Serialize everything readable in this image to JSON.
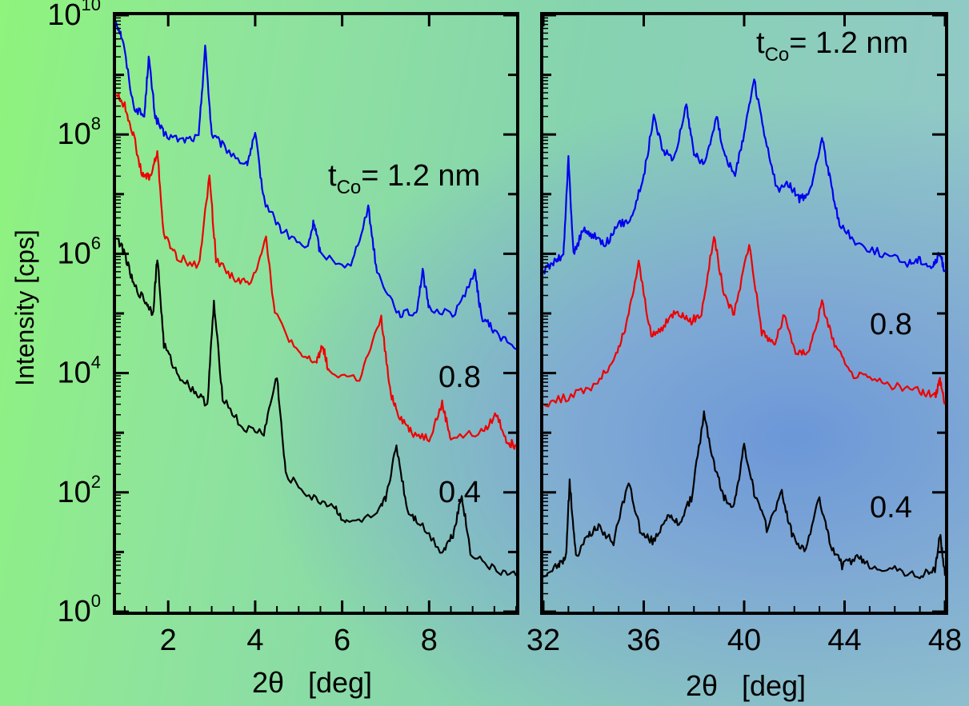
{
  "chart_data": [
    {
      "type": "line",
      "ylabel": "Intensity  [cps]",
      "xlabel": "2θ   [deg]",
      "xlim": [
        0.8,
        10.0
      ],
      "ylim": [
        1,
        10000000000
      ],
      "y_scale": "log",
      "x_ticks": [
        "2",
        "4",
        "6",
        "8"
      ],
      "y_ticks": [
        {
          "base": "10",
          "exp": "0"
        },
        {
          "base": "10",
          "exp": "2"
        },
        {
          "base": "10",
          "exp": "4"
        },
        {
          "base": "10",
          "exp": "6"
        },
        {
          "base": "10",
          "exp": "8"
        },
        {
          "base": "10",
          "exp": "10"
        }
      ],
      "annotations": {
        "thickness_prefix": "t",
        "thickness_sub": "Co",
        "thickness_value": "= 1.2 nm",
        "label_08": "0.8",
        "label_04": "0.4"
      },
      "series": [
        {
          "color": "#0000ee",
          "x": [
            0.8,
            0.95,
            1.2,
            1.45,
            1.55,
            1.7,
            1.9,
            2.3,
            2.7,
            2.85,
            3.0,
            3.3,
            3.8,
            4.0,
            4.2,
            4.6,
            5.2,
            5.35,
            5.5,
            6.2,
            6.6,
            6.8,
            7.3,
            7.7,
            7.85,
            8.0,
            8.6,
            9.05,
            9.2,
            9.5,
            10.0
          ],
          "y": [
            8000000000,
            4000000000,
            300000000,
            200000000,
            2000000000,
            200000000,
            100000000,
            80000000,
            90000000,
            3000000000,
            100000000,
            60000000,
            30000000,
            100000000,
            8000000,
            2500000,
            1200000,
            3500000,
            1000000,
            600000,
            6000000,
            500000,
            100000,
            100000,
            500000,
            120000,
            100000,
            500000,
            90000,
            50000,
            25000
          ]
        },
        {
          "color": "#ee0000",
          "x": [
            0.8,
            1.0,
            1.2,
            1.4,
            1.6,
            1.75,
            1.9,
            2.2,
            2.7,
            2.95,
            3.1,
            3.5,
            3.9,
            4.25,
            4.45,
            5.0,
            5.4,
            5.55,
            5.7,
            6.4,
            6.9,
            7.1,
            7.3,
            7.6,
            8.0,
            8.3,
            8.5,
            9.2,
            9.55,
            9.8,
            10.0
          ],
          "y": [
            500000000,
            300000000,
            100000000,
            20000000,
            20000000,
            50000000,
            2000000,
            900000,
            600000,
            20000000,
            800000,
            400000,
            300000,
            2000000,
            100000,
            20000,
            15000,
            30000,
            10000,
            8000,
            80000,
            5000,
            2000,
            1000,
            800,
            3000,
            800,
            1000,
            2000,
            700,
            600
          ]
        },
        {
          "color": "#000000",
          "x": [
            0.8,
            1.0,
            1.2,
            1.5,
            1.65,
            1.75,
            1.9,
            2.2,
            2.6,
            2.9,
            3.05,
            3.25,
            3.7,
            4.2,
            4.5,
            4.7,
            5.3,
            5.8,
            6.1,
            6.8,
            7.0,
            7.25,
            7.5,
            7.8,
            8.3,
            8.55,
            8.75,
            8.95,
            9.5,
            10.0
          ],
          "y": [
            2000000,
            1000000,
            300000,
            150000,
            100000,
            900000,
            30000,
            10000,
            5000,
            3000,
            150000,
            4000,
            1200,
            1000,
            9000,
            200,
            80,
            60,
            30,
            40,
            80,
            600,
            50,
            30,
            10,
            20,
            90,
            10,
            5,
            4
          ]
        }
      ]
    },
    {
      "type": "line",
      "xlabel": "2θ   [deg]",
      "xlim": [
        32,
        48
      ],
      "y_scale": "log",
      "x_ticks": [
        "32",
        "36",
        "40",
        "44",
        "48"
      ],
      "annotations": {
        "thickness_prefix": "t",
        "thickness_sub": "Co",
        "thickness_value": "= 1.2 nm",
        "label_08": "0.8",
        "label_04": "0.4"
      },
      "series": [
        {
          "color": "#0000ee",
          "x": [
            32.0,
            32.5,
            32.8,
            33.0,
            33.2,
            33.6,
            34.0,
            34.5,
            35.0,
            35.5,
            36.0,
            36.4,
            36.8,
            37.2,
            37.7,
            38.0,
            38.4,
            38.9,
            39.2,
            39.6,
            40.0,
            40.4,
            40.8,
            41.3,
            41.8,
            42.2,
            42.6,
            43.1,
            43.4,
            43.8,
            44.5,
            45.5,
            46.5,
            47.0,
            47.5,
            47.8,
            48.0
          ],
          "y": [
            500000,
            800000,
            900000,
            40000000,
            1000000,
            2500000,
            2000000,
            1500000,
            3000000,
            4000000,
            20000000,
            200000000,
            50000000,
            40000000,
            300000000,
            50000000,
            30000000,
            200000000,
            50000000,
            20000000,
            100000000,
            800000000,
            100000000,
            12000000,
            15000000,
            8000000,
            10000000,
            90000000,
            20000000,
            3000000,
            1500000,
            1000000,
            700000,
            800000,
            600000,
            1000000,
            500000
          ]
        },
        {
          "color": "#ee0000",
          "x": [
            32.0,
            33.0,
            34.0,
            34.8,
            35.3,
            35.8,
            36.3,
            36.8,
            37.3,
            37.8,
            38.3,
            38.8,
            39.2,
            39.6,
            40.2,
            40.7,
            41.2,
            41.6,
            42.1,
            42.6,
            43.1,
            43.6,
            44.2,
            45.0,
            46.0,
            47.0,
            47.6,
            47.8,
            48.0
          ],
          "y": [
            3000,
            4000,
            6000,
            15000,
            60000,
            700000,
            40000,
            60000,
            120000,
            70000,
            100000,
            2000000,
            200000,
            100000,
            1500000,
            50000,
            30000,
            90000,
            20000,
            25000,
            150000,
            30000,
            10000,
            8000,
            6000,
            5000,
            4000,
            8000,
            3000
          ]
        },
        {
          "color": "#000000",
          "x": [
            32.0,
            32.6,
            32.9,
            33.05,
            33.3,
            33.8,
            34.2,
            34.8,
            35.4,
            35.9,
            36.4,
            36.9,
            37.4,
            37.9,
            38.4,
            38.8,
            39.2,
            39.6,
            40.0,
            40.4,
            40.9,
            41.5,
            41.9,
            42.4,
            43.0,
            43.4,
            43.9,
            44.5,
            45.0,
            46.0,
            47.0,
            47.6,
            47.8,
            48.0
          ],
          "y": [
            4,
            6,
            8,
            150,
            8,
            20,
            25,
            15,
            150,
            20,
            15,
            40,
            30,
            80,
            2000,
            300,
            80,
            60,
            600,
            100,
            25,
            100,
            20,
            10,
            80,
            15,
            6,
            8,
            6,
            5,
            4,
            5,
            20,
            4
          ]
        }
      ]
    }
  ]
}
